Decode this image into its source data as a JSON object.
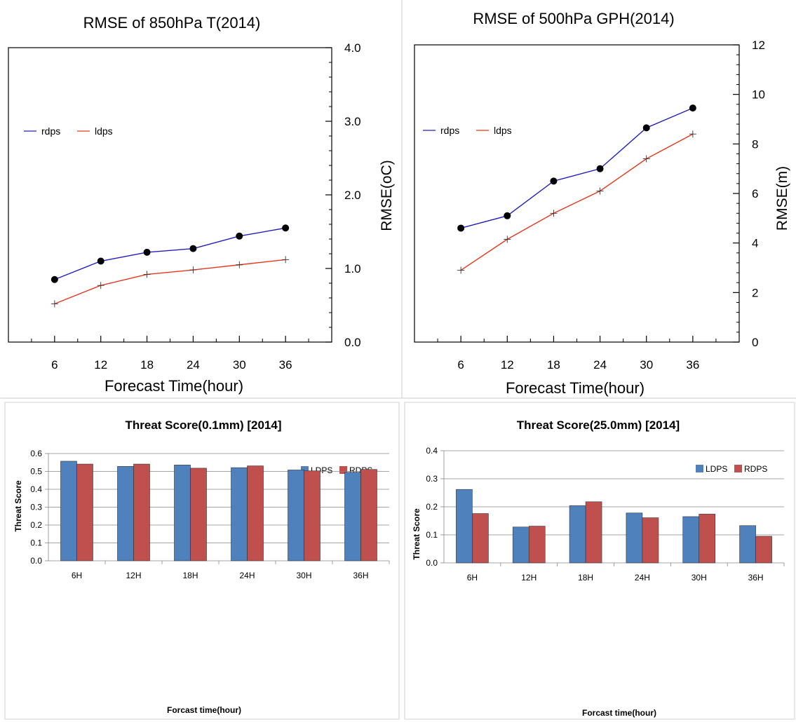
{
  "colors": {
    "rdps_line": "#2020c0",
    "ldps_line": "#e8381c",
    "ldps_bar": "#4f81bd",
    "rdps_bar": "#c0504d"
  },
  "chart_data": [
    {
      "type": "line",
      "title": "RMSE of 850hPa T(2014)",
      "xlabel": "Forecast Time(hour)",
      "ylabel": "RMSE(oC)",
      "x": [
        6,
        12,
        18,
        24,
        30,
        36
      ],
      "xticks": [
        "6",
        "12",
        "18",
        "24",
        "30",
        "36"
      ],
      "xlim": [
        0,
        42
      ],
      "ylim": [
        0,
        4
      ],
      "yticks": [
        "0.0",
        "1.0",
        "2.0",
        "3.0",
        "4.0"
      ],
      "ytick_values": [
        0,
        1,
        2,
        3,
        4
      ],
      "legend": "left",
      "series": [
        {
          "name": "rdps",
          "values": [
            0.85,
            1.1,
            1.22,
            1.27,
            1.44,
            1.55
          ]
        },
        {
          "name": "ldps",
          "values": [
            0.52,
            0.77,
            0.92,
            0.98,
            1.05,
            1.12
          ]
        }
      ]
    },
    {
      "type": "line",
      "title": "RMSE of 500hPa GPH(2014)",
      "xlabel": "Forecast Time(hour)",
      "ylabel": "RMSE(m)",
      "x": [
        6,
        12,
        18,
        24,
        30,
        36
      ],
      "xticks": [
        "6",
        "12",
        "18",
        "24",
        "30",
        "36"
      ],
      "xlim": [
        0,
        42
      ],
      "ylim": [
        0,
        12
      ],
      "yticks": [
        "0",
        "2",
        "4",
        "6",
        "8",
        "10",
        "12"
      ],
      "ytick_values": [
        0,
        2,
        4,
        6,
        8,
        10,
        12
      ],
      "legend": "left",
      "series": [
        {
          "name": "rdps",
          "values": [
            4.6,
            5.1,
            6.5,
            7.0,
            8.65,
            9.45
          ]
        },
        {
          "name": "ldps",
          "values": [
            2.9,
            4.15,
            5.2,
            6.1,
            7.4,
            8.4
          ]
        }
      ]
    },
    {
      "type": "bar",
      "title": "Threat Score(0.1mm) [2014]",
      "xlabel": "Forcast time(hour)",
      "ylabel": "Threat Score",
      "categories": [
        "6H",
        "12H",
        "18H",
        "24H",
        "30H",
        "36H"
      ],
      "ylim": [
        0,
        0.6
      ],
      "yticks": [
        "0.0",
        "0.1",
        "0.2",
        "0.3",
        "0.4",
        "0.5",
        "0.6"
      ],
      "ytick_values": [
        0,
        0.1,
        0.2,
        0.3,
        0.4,
        0.5,
        0.6
      ],
      "grid": true,
      "legend": "top-right",
      "series": [
        {
          "name": "LDPS",
          "values": [
            0.557,
            0.528,
            0.536,
            0.521,
            0.508,
            0.495
          ]
        },
        {
          "name": "RDPS",
          "values": [
            0.541,
            0.541,
            0.518,
            0.531,
            0.503,
            0.511
          ]
        }
      ]
    },
    {
      "type": "bar",
      "title": "Threat Score(25.0mm) [2014]",
      "xlabel": "Forcast time(hour)",
      "ylabel": "Threat Score",
      "categories": [
        "6H",
        "12H",
        "18H",
        "24H",
        "30H",
        "36H"
      ],
      "ylim": [
        0,
        0.4
      ],
      "yticks": [
        "0.0",
        "0.1",
        "0.2",
        "0.3",
        "0.4"
      ],
      "ytick_values": [
        0,
        0.1,
        0.2,
        0.3,
        0.4
      ],
      "grid": true,
      "legend": "top-right",
      "series": [
        {
          "name": "LDPS",
          "values": [
            0.262,
            0.128,
            0.204,
            0.178,
            0.165,
            0.133
          ]
        },
        {
          "name": "RDPS",
          "values": [
            0.176,
            0.131,
            0.218,
            0.161,
            0.174,
            0.095
          ]
        }
      ]
    }
  ]
}
